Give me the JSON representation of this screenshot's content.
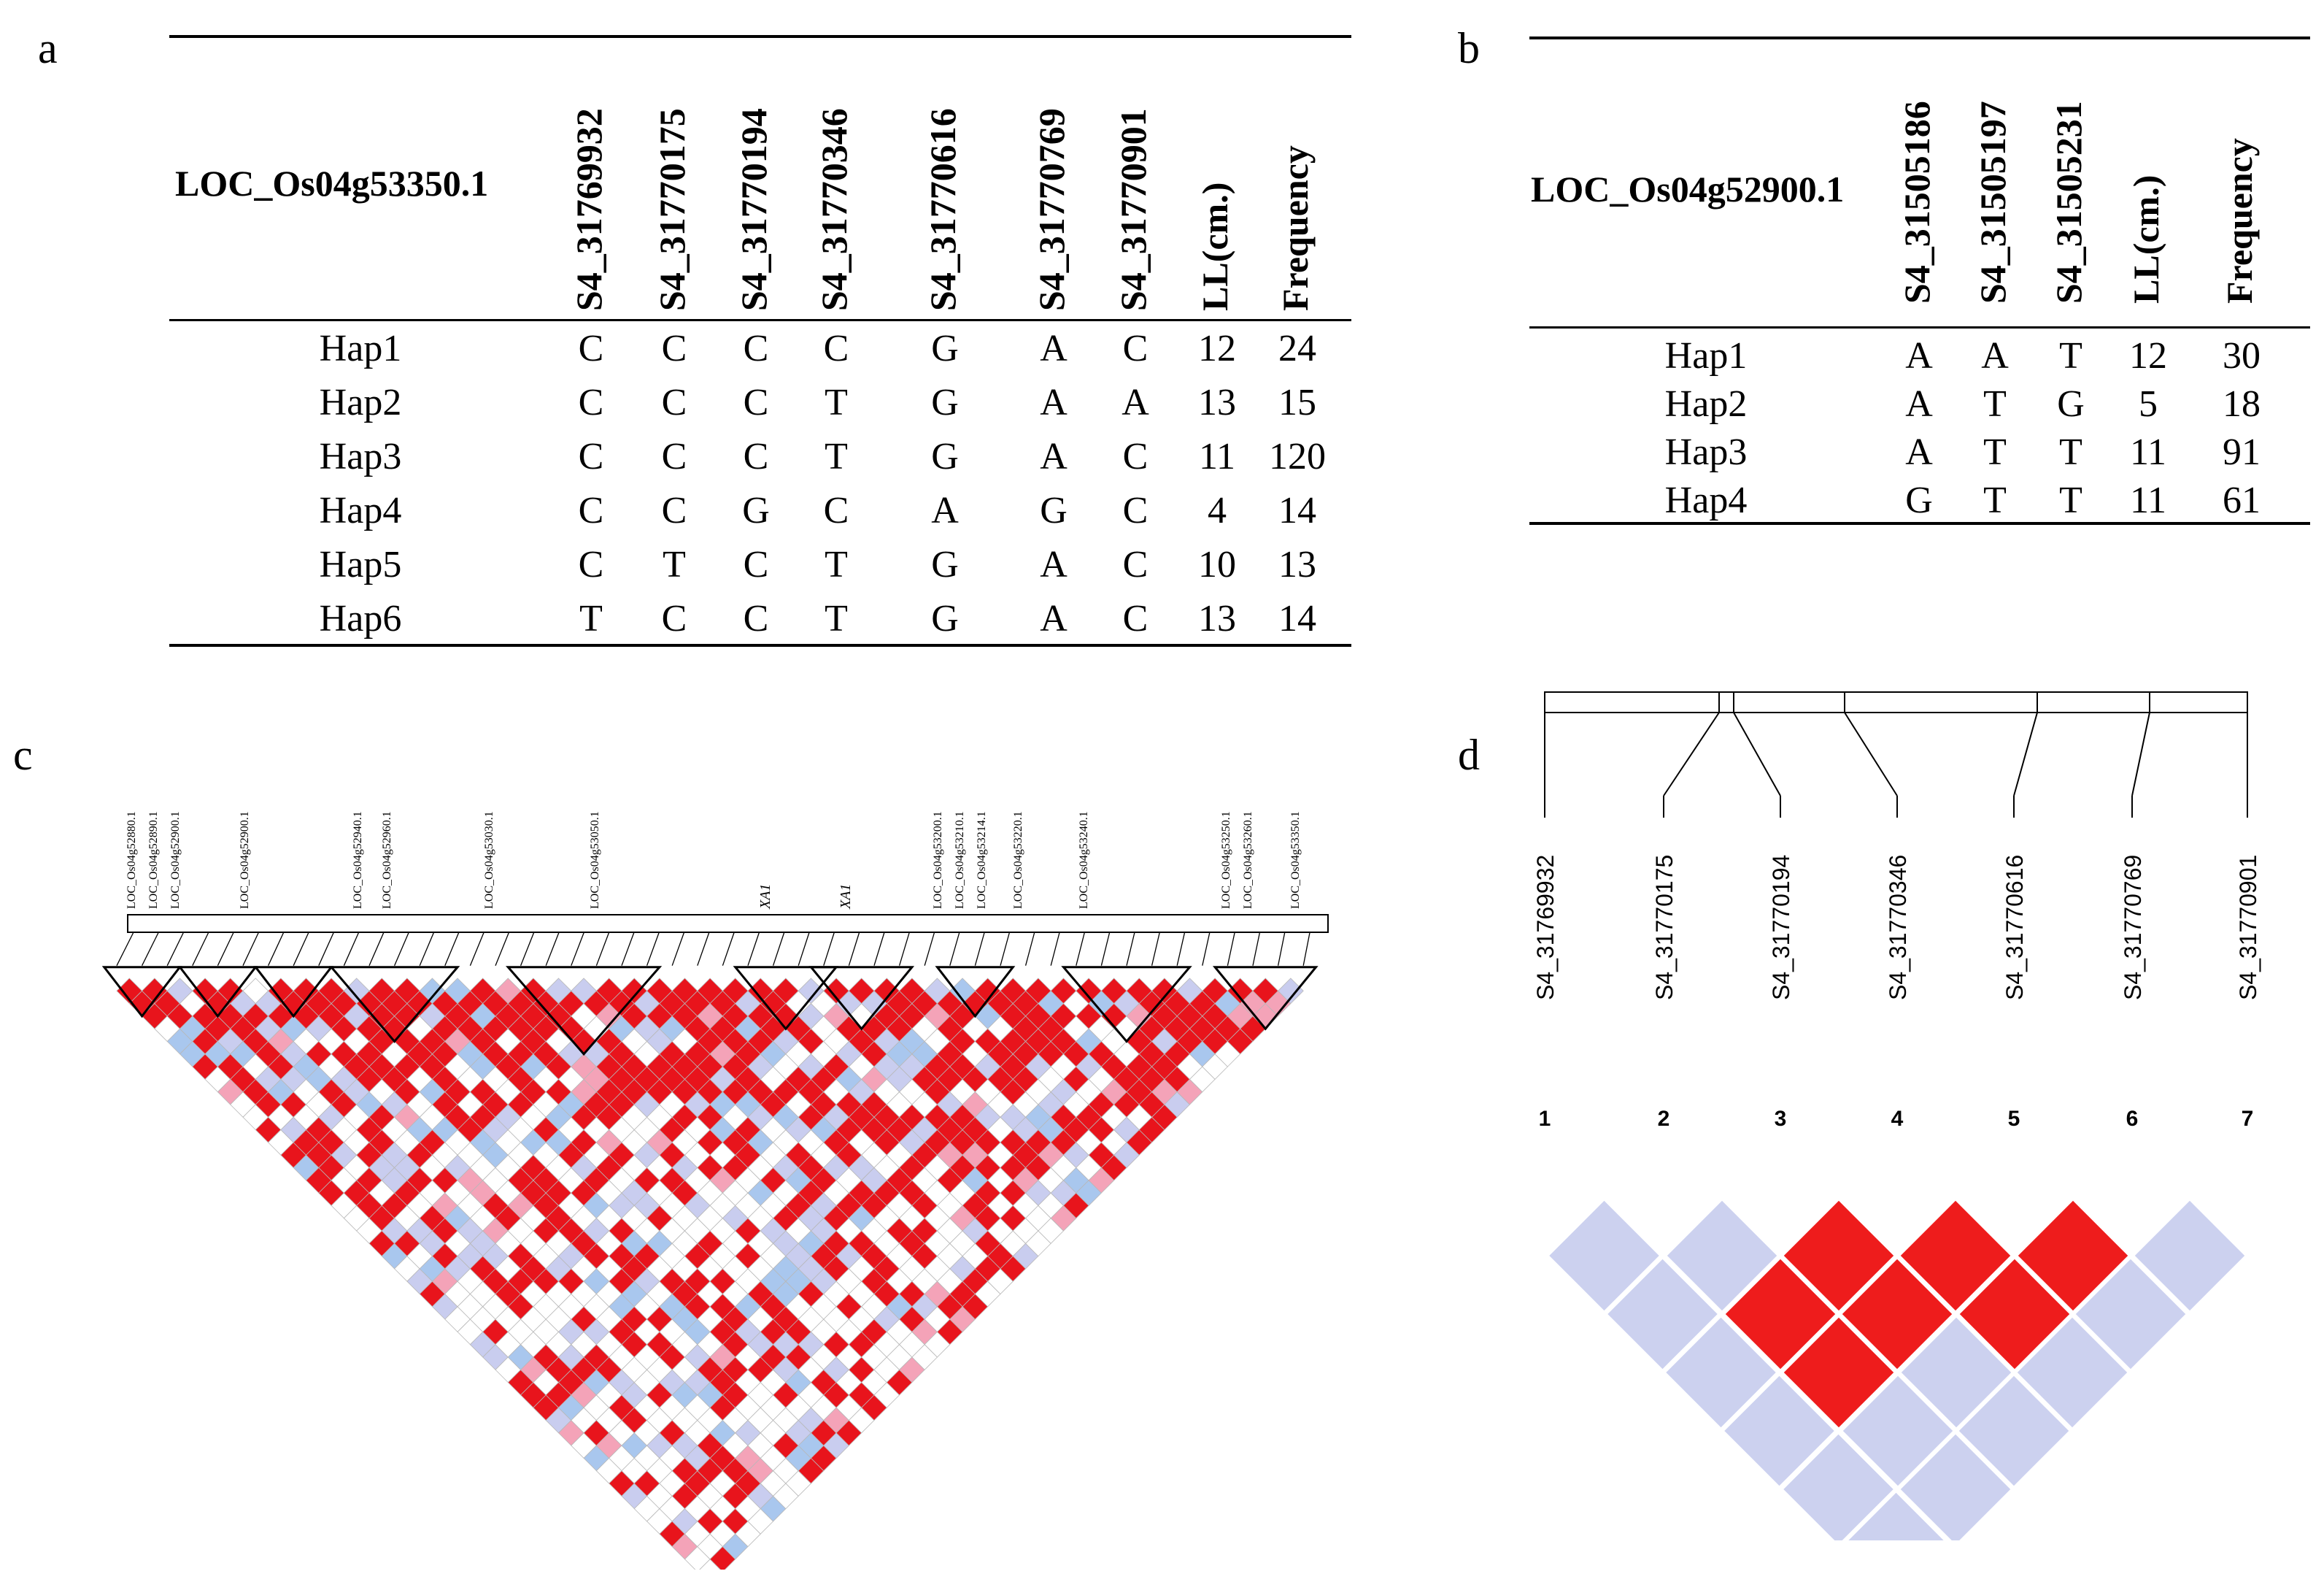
{
  "panels": {
    "a": "a",
    "b": "b",
    "c": "c",
    "d": "d"
  },
  "table_a": {
    "gene": "LOC_Os04g53350.1",
    "columns": [
      "S4_31769932",
      "S4_31770175",
      "S4_31770194",
      "S4_31770346",
      "S4_31770616",
      "S4_31770769",
      "S4_31770901",
      "LL(cm.)",
      "Frequency"
    ],
    "rows": [
      {
        "hap": "Hap1",
        "cells": [
          "C",
          "C",
          "C",
          "C",
          "G",
          "A",
          "C",
          "12",
          "24"
        ]
      },
      {
        "hap": "Hap2",
        "cells": [
          "C",
          "C",
          "C",
          "T",
          "G",
          "A",
          "A",
          "13",
          "15"
        ]
      },
      {
        "hap": "Hap3",
        "cells": [
          "C",
          "C",
          "C",
          "T",
          "G",
          "A",
          "C",
          "11",
          "120"
        ]
      },
      {
        "hap": "Hap4",
        "cells": [
          "C",
          "C",
          "G",
          "C",
          "A",
          "G",
          "C",
          "4",
          "14"
        ]
      },
      {
        "hap": "Hap5",
        "cells": [
          "C",
          "T",
          "C",
          "T",
          "G",
          "A",
          "C",
          "10",
          "13"
        ]
      },
      {
        "hap": "Hap6",
        "cells": [
          "T",
          "C",
          "C",
          "T",
          "G",
          "A",
          "C",
          "13",
          "14"
        ]
      }
    ]
  },
  "table_b": {
    "gene": "LOC_Os04g52900.1",
    "columns": [
      "S4_31505186",
      "S4_31505197",
      "S4_31505231",
      "LL(cm.)",
      "Frequency"
    ],
    "rows": [
      {
        "hap": "Hap1",
        "cells": [
          "A",
          "A",
          "T",
          "12",
          "30"
        ]
      },
      {
        "hap": "Hap2",
        "cells": [
          "A",
          "T",
          "G",
          "5",
          "18"
        ]
      },
      {
        "hap": "Hap3",
        "cells": [
          "A",
          "T",
          "T",
          "11",
          "91"
        ]
      },
      {
        "hap": "Hap4",
        "cells": [
          "G",
          "T",
          "T",
          "11",
          "61"
        ]
      }
    ]
  },
  "panel_c": {
    "gene_labels": [
      "LOC_Os04g52880.1",
      "LOC_Os04g52890.1",
      "LOC_Os04g52900.1",
      "LOC_Os04g52900.1",
      "LOC_Os04g52940.1",
      "LOC_Os04g52960.1",
      "LOC_Os04g53030.1",
      "LOC_Os04g53050.1",
      "XA1",
      "XA1",
      "LOC_Os04g53200.1",
      "LOC_Os04g53210.1",
      "LOC_Os04g53214.1",
      "LOC_Os04g53220.1",
      "LOC_Os04g53240.1",
      "LOC_Os04g53250.1",
      "LOC_Os04g53260.1",
      "LOC_Os04g53350.1"
    ],
    "colors": {
      "strong": "#e8141c",
      "mid": "#f4a3b8",
      "weak": "#c9cdef",
      "blue": "#a9c7ee",
      "none": "#ffffff",
      "grid": "#b8b8b8"
    }
  },
  "panel_d": {
    "snps": [
      "S4_31769932",
      "S4_31770175",
      "S4_31770194",
      "S4_31770346",
      "S4_31770616",
      "S4_31770769",
      "S4_31770901"
    ],
    "indices": [
      "1",
      "2",
      "3",
      "4",
      "5",
      "6",
      "7"
    ],
    "ld_strong_pairs": [
      [
        3,
        4
      ],
      [
        4,
        5
      ],
      [
        5,
        6
      ],
      [
        2,
        4
      ],
      [
        3,
        5
      ],
      [
        4,
        6
      ],
      [
        2,
        5
      ]
    ],
    "colors": {
      "strong": "#ee1c1c",
      "weak": "#ccd1ef"
    }
  }
}
